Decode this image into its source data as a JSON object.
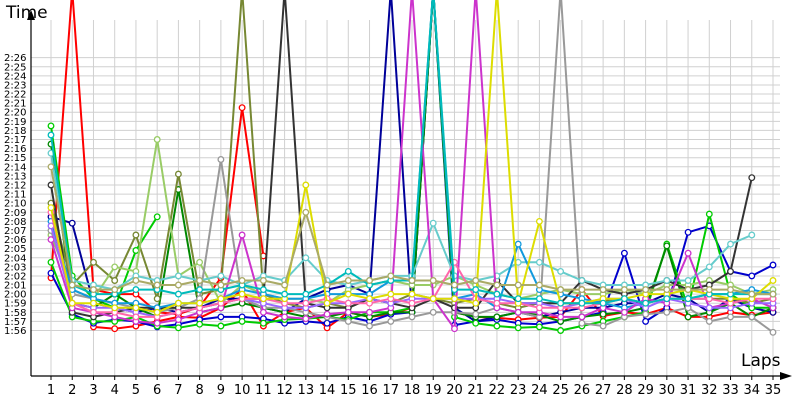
{
  "chart_data": {
    "type": "line",
    "title": "",
    "xlabel": "Laps",
    "ylabel": "Time",
    "x": [
      1,
      2,
      3,
      4,
      5,
      6,
      7,
      8,
      9,
      10,
      11,
      12,
      13,
      14,
      15,
      16,
      17,
      18,
      19,
      20,
      21,
      22,
      23,
      24,
      25,
      26,
      27,
      28,
      29,
      30,
      31,
      32,
      33,
      34,
      35
    ],
    "ylim": [
      111,
      150
    ],
    "y_ticks": [
      116,
      117,
      118,
      119,
      120,
      121,
      122,
      123,
      124,
      125,
      126,
      127,
      128,
      129,
      130,
      131,
      132,
      133,
      134,
      135,
      136,
      137,
      138,
      139,
      140,
      141,
      142,
      143,
      144,
      145,
      146
    ],
    "y_tick_labels": [
      "1:56",
      "1:57",
      "1:58",
      "1:59",
      "2:00",
      "2:01",
      "2:02",
      "2:03",
      "2:04",
      "2:05",
      "2:06",
      "2:07",
      "2:08",
      "2:09",
      "2:10",
      "2:11",
      "2:12",
      "2:13",
      "2:14",
      "2:15",
      "2:16",
      "2:17",
      "2:18",
      "2:19",
      "2:20",
      "2:21",
      "2:22",
      "2:23",
      "2:24",
      "2:25",
      "2:26"
    ],
    "grid": true,
    "legend": "none",
    "series": [
      {
        "color": "#ff0000",
        "values": [
          121.8,
          170,
          120.5,
          120,
          120,
          118,
          117.8,
          118.6,
          121.8,
          140.5,
          124.2,
          null,
          null,
          null,
          null,
          null,
          null,
          null,
          null,
          null,
          null,
          null,
          null,
          null,
          null,
          null,
          null,
          null,
          null,
          null,
          null,
          null,
          null,
          null,
          null
        ]
      },
      {
        "color": "#ff0000",
        "values": [
          null,
          null,
          116.4,
          116.2,
          116.5,
          117,
          117.5,
          117.4,
          118.5,
          120.5,
          116.5,
          118,
          118.5,
          116.3,
          118,
          117.5,
          117.8,
          118.5,
          170,
          118,
          117.5,
          117.4,
          117.2,
          117.4,
          117.5,
          120.5,
          117.6,
          118,
          117.8,
          118.5,
          117.5,
          117.5,
          118,
          117.7,
          118
        ]
      },
      {
        "color": "#0000cc",
        "values": [
          122.3,
          117.8,
          116.8,
          117.2,
          117,
          116.4,
          116.7,
          117.2,
          117.5,
          117.5,
          117.3,
          116.8,
          117,
          116.8,
          117.5,
          117,
          117.8,
          118,
          170,
          116.6,
          117,
          117.2,
          116.8,
          116.7,
          117,
          117.5,
          118,
          124.5,
          117,
          118.5,
          126.8,
          127.5,
          122.5,
          122,
          123.2
        ]
      },
      {
        "color": "#000099",
        "values": [
          128.5,
          127.8,
          119,
          118.5,
          118,
          118.5,
          118,
          118.5,
          119.5,
          119.5,
          118.5,
          118,
          119.5,
          120.5,
          121,
          120,
          170,
          118,
          170,
          118.5,
          117,
          117.5,
          118,
          117.5,
          118,
          118.5,
          118.5,
          119,
          119,
          120,
          119.5,
          118,
          119.5,
          118.5,
          118
        ]
      },
      {
        "color": "#00cc00",
        "values": [
          138.5,
          122,
          119.5,
          118.5,
          124.8,
          128.5,
          null,
          null,
          null,
          null,
          null,
          null,
          null,
          null,
          null,
          null,
          null,
          null,
          null,
          null,
          null,
          null,
          null,
          null,
          null,
          null,
          null,
          null,
          null,
          null,
          null,
          null,
          null,
          null,
          null
        ]
      },
      {
        "color": "#00cc00",
        "values": [
          123.5,
          117.5,
          117,
          117,
          117.5,
          116.5,
          116.3,
          116.7,
          116.5,
          117,
          116.8,
          117.2,
          117.3,
          117.5,
          117.2,
          118,
          118,
          118.5,
          170,
          117.5,
          116.8,
          116.5,
          116.3,
          116.4,
          116,
          116.5,
          117,
          117.5,
          118,
          125.5,
          118.5,
          128.8,
          120,
          118.5,
          118.5
        ]
      },
      {
        "color": "#008800",
        "values": [
          136.5,
          119,
          118.5,
          120,
          118.5,
          117.5,
          131.5,
          118,
          118.5,
          119,
          118.5,
          118,
          117.5,
          117.5,
          118,
          117.5,
          118,
          118,
          170,
          118,
          117.5,
          117.5,
          118,
          117.7,
          117,
          117.5,
          117.8,
          118,
          118.5,
          125.3,
          117.5,
          118,
          119,
          117.5,
          118.5
        ]
      },
      {
        "color": "#778833",
        "values": [
          130,
          121,
          123.5,
          121.5,
          126.5,
          119.5,
          133.2,
          120,
          120.5,
          170,
          120,
          119,
          118.5,
          119,
          118.5,
          119.5,
          119,
          120,
          119.5,
          119,
          119.5,
          119,
          118.5,
          119,
          119,
          119,
          119.2,
          119.5,
          119,
          119.5,
          119.5,
          119.5,
          119.5,
          119,
          119.5
        ]
      },
      {
        "color": "#99cc66",
        "values": [
          126.5,
          120.5,
          119.5,
          123,
          122.5,
          137,
          122,
          123.5,
          119,
          121,
          120,
          119.5,
          119.5,
          119,
          120.5,
          121,
          121.5,
          121,
          121,
          122,
          121,
          120,
          119.5,
          120,
          120.5,
          120,
          120,
          120.5,
          120,
          121,
          121,
          121.5,
          121,
          120,
          120.5
        ]
      },
      {
        "color": "#999999",
        "values": [
          127,
          120,
          119.5,
          119,
          118.5,
          118,
          118.5,
          119.5,
          134.8,
          119.5,
          118.5,
          118.5,
          118,
          117.5,
          117,
          116.5,
          117,
          117.5,
          118,
          118,
          117.8,
          118.5,
          118,
          117.5,
          170,
          116.8,
          116.5,
          117.5,
          117.8,
          118,
          118.5,
          117,
          117.5,
          117.5,
          115.8
        ]
      },
      {
        "color": "#333333",
        "values": [
          132,
          118,
          117.5,
          118,
          118.5,
          118.5,
          118.5,
          118.5,
          119,
          119.5,
          119.5,
          170,
          119,
          118.5,
          118.5,
          119.5,
          119,
          118.5,
          119.5,
          118.5,
          118.5,
          121.5,
          119,
          119,
          119,
          121.5,
          120.5,
          120,
          120.5,
          121.5,
          120.5,
          121,
          122.5,
          132.8,
          null
        ]
      },
      {
        "color": "#66cccc",
        "values": [
          135.5,
          121.5,
          121,
          120.5,
          122,
          121.5,
          122,
          121.5,
          122,
          121,
          122,
          121.5,
          124,
          121.5,
          121,
          121.5,
          122,
          122,
          127.8,
          122,
          121.5,
          122,
          123.5,
          123.5,
          122.5,
          121.5,
          121,
          121,
          121,
          121.5,
          121.5,
          123,
          125.5,
          126.5,
          null
        ]
      },
      {
        "color": "#1199dd",
        "values": [
          128,
          120.5,
          119.5,
          119,
          119,
          118.5,
          119,
          119,
          119.5,
          120.5,
          120,
          119.5,
          119.5,
          120,
          120,
          120,
          121.5,
          121.5,
          170,
          119.5,
          120,
          118.5,
          125.5,
          120.5,
          120,
          119.5,
          119,
          118.5,
          119,
          119.5,
          119.5,
          120,
          120,
          120.5,
          120
        ]
      },
      {
        "color": "#cc33cc",
        "values": [
          126,
          118.5,
          118,
          117.5,
          117,
          116.8,
          117.2,
          118,
          118.5,
          126.5,
          118,
          117.5,
          117.3,
          117.8,
          118,
          118,
          118.5,
          170,
          119.5,
          116.2,
          170,
          118.5,
          118,
          118,
          117.5,
          117.5,
          118.5,
          118,
          119.5,
          119,
          124.5,
          118.5,
          119,
          119.5,
          118.5
        ]
      },
      {
        "color": "#9966ff",
        "values": [
          127.5,
          119,
          118.5,
          118.5,
          118,
          117.5,
          118,
          118.5,
          119,
          119.5,
          119,
          118.5,
          118.5,
          119,
          119,
          119.5,
          119,
          119.5,
          119.5,
          119.5,
          119.5,
          119.5,
          119,
          119,
          118.5,
          119,
          119.5,
          119.5,
          118.5,
          119.5,
          119,
          118.5,
          118.5,
          119,
          119
        ]
      },
      {
        "color": "#ff66aa",
        "values": [
          129,
          119,
          118,
          118,
          117.5,
          117.5,
          118,
          118.5,
          119,
          119.5,
          119.5,
          119,
          119,
          119.5,
          119,
          119,
          119.5,
          119,
          119.5,
          123.5,
          119.5,
          119,
          119,
          118.5,
          118.5,
          118.5,
          119,
          119.5,
          119,
          119.5,
          119.5,
          119.5,
          119,
          119.5,
          119.5
        ]
      },
      {
        "color": "#dddd00",
        "values": [
          129.5,
          119,
          119,
          118.5,
          118.5,
          118,
          119,
          119,
          119.5,
          120,
          119.5,
          119.5,
          132,
          119,
          120,
          119.5,
          120,
          120,
          119.5,
          119.5,
          119,
          170,
          119,
          128,
          119,
          119,
          119.5,
          119.5,
          120,
          120,
          120.5,
          120,
          119.5,
          119.5,
          121.5
        ]
      },
      {
        "color": "#00bbbb",
        "values": [
          137.5,
          121,
          120,
          120,
          120.5,
          120.5,
          120,
          120.5,
          120.5,
          121,
          120.5,
          120,
          120,
          121,
          122.5,
          121,
          121.5,
          121.5,
          170,
          120.5,
          120.5,
          120,
          119.5,
          119.5,
          119,
          119,
          119,
          119.5,
          119,
          119.5,
          119.5,
          120,
          120,
          120,
          120
        ]
      },
      {
        "color": "#aaaa66",
        "values": [
          134,
          121,
          120.5,
          120.5,
          121.5,
          121,
          121,
          121.5,
          121,
          121.5,
          121.5,
          121,
          129,
          121,
          121.5,
          121.5,
          122,
          121.5,
          121.5,
          121,
          121.5,
          121,
          121,
          121,
          120.5,
          120.5,
          120.5,
          120.5,
          120.5,
          120.5,
          120.5,
          120.5,
          120.5,
          120,
          120
        ]
      }
    ]
  }
}
